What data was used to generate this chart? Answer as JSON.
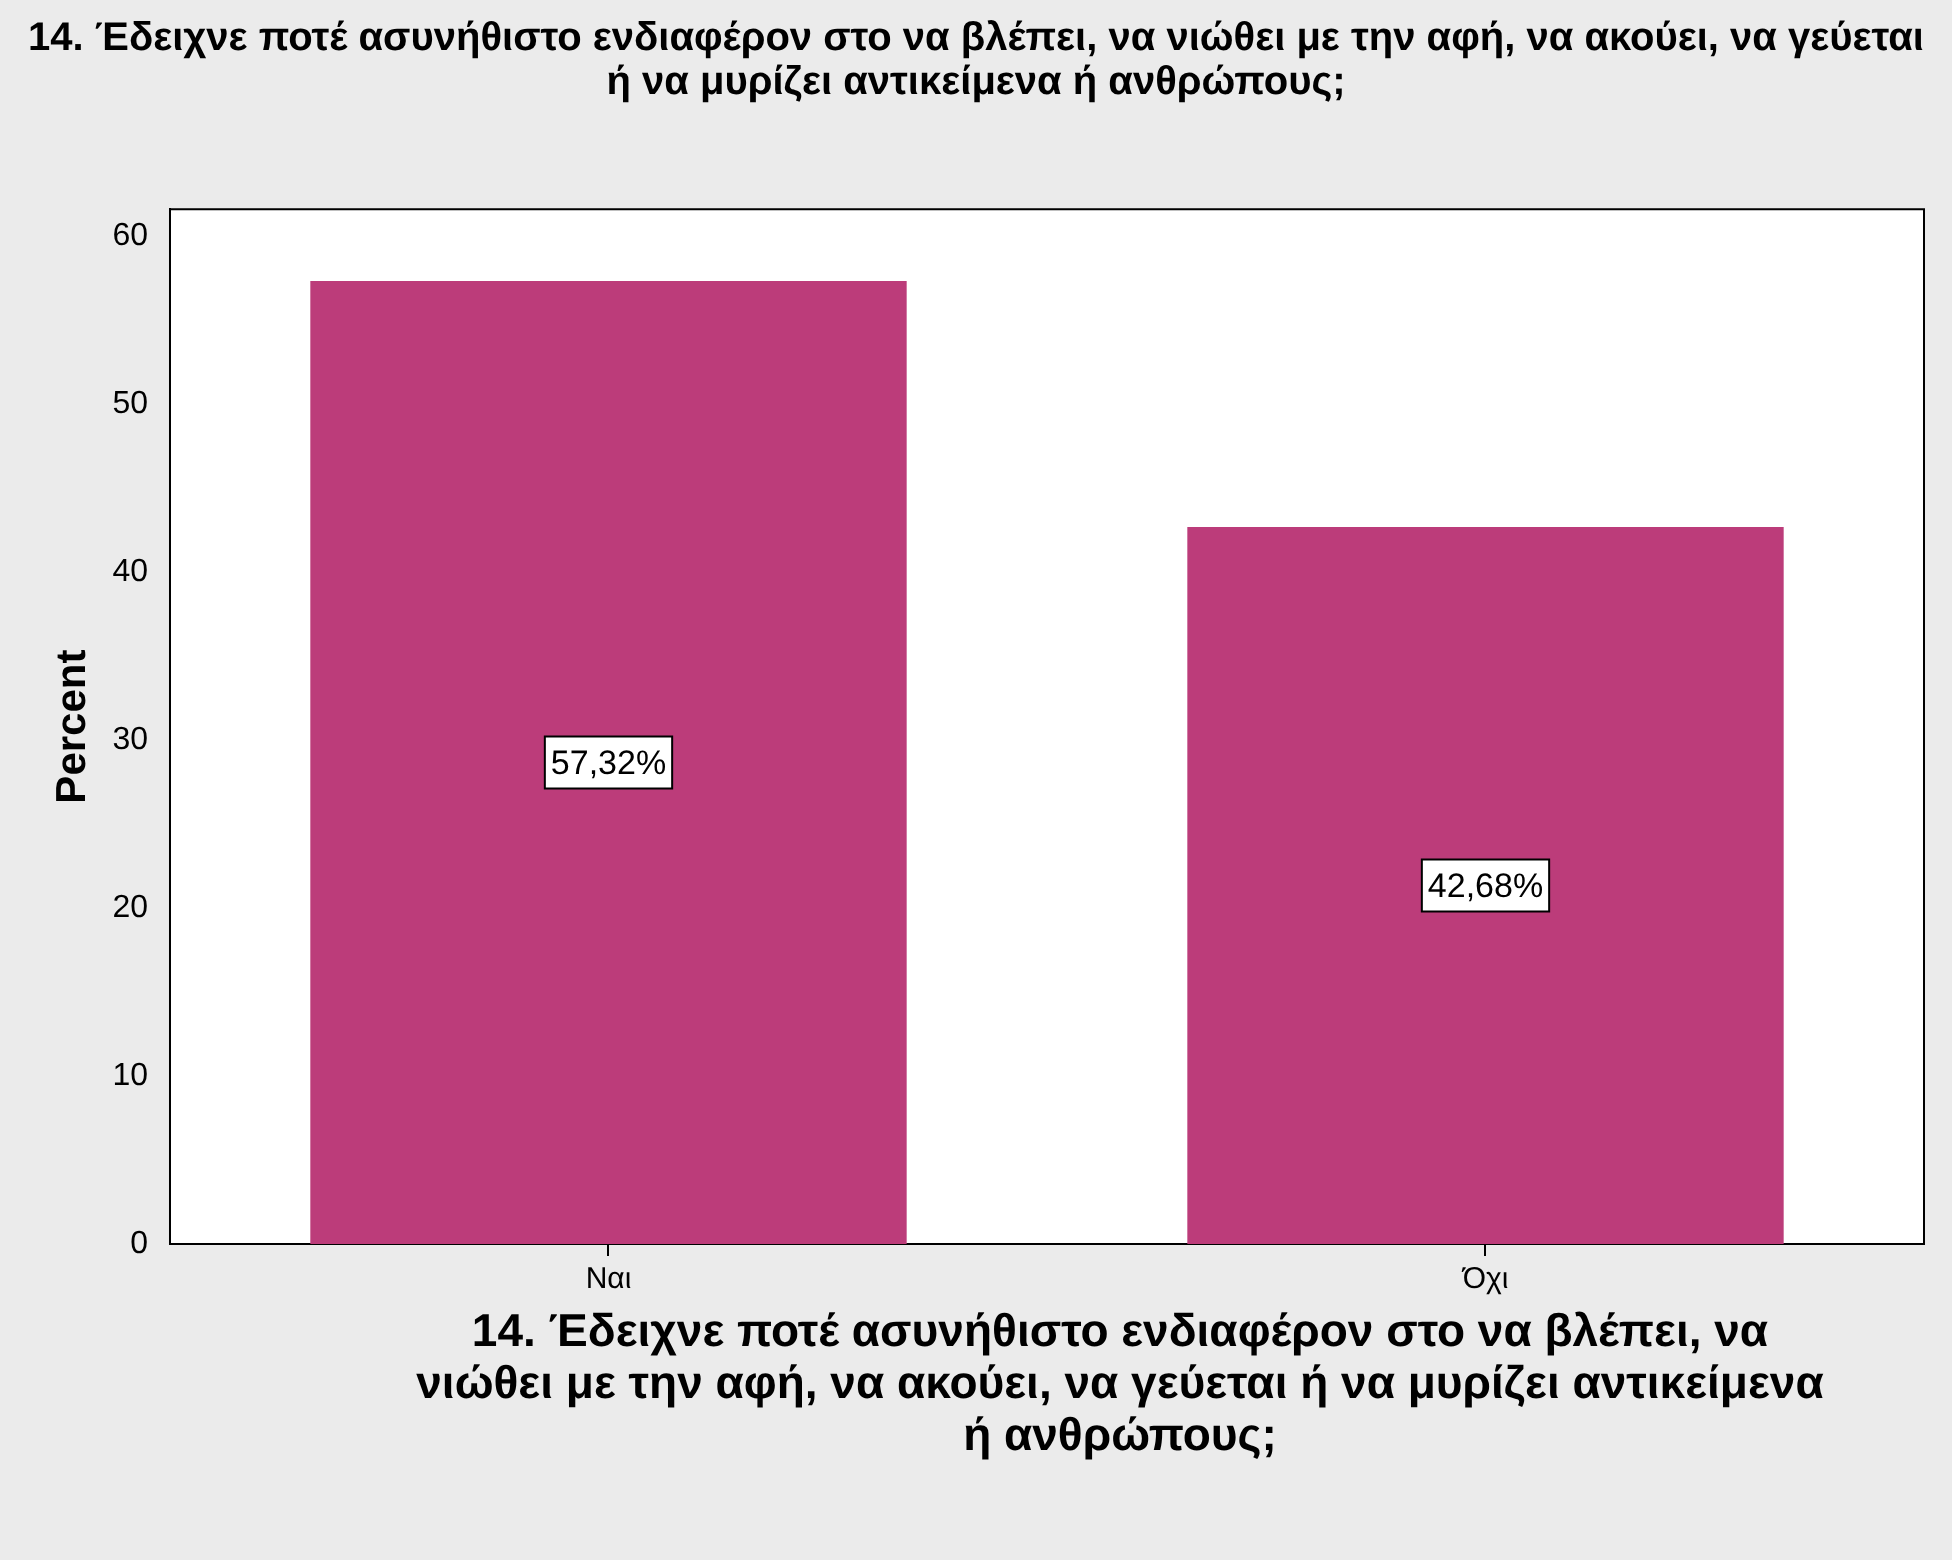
{
  "chart_data": {
    "type": "bar",
    "title": "14. Έδειχνε ποτέ ασυνήθιστο ενδιαφέρον στο να βλέπει, να νιώθει με την αφή, να ακούει, να γεύεται ή να μυρίζει αντικείμενα ή ανθρώπους;",
    "xlabel": "14. Έδειχνε ποτέ ασυνήθιστο ενδιαφέρον στο να βλέπει, να νιώθει με την αφή, να ακούει, να γεύεται ή να μυρίζει αντικείμενα ή ανθρώπους;",
    "ylabel": "Percent",
    "categories": [
      "Ναι",
      "Όχι"
    ],
    "values": [
      57.32,
      42.68
    ],
    "value_labels": [
      "57,32%",
      "42,68%"
    ],
    "color": "#bc3c7a",
    "ylim": [
      0,
      61.6
    ],
    "yticks": [
      0,
      10,
      20,
      30,
      40,
      50,
      60
    ],
    "grid": false,
    "legend": false
  }
}
